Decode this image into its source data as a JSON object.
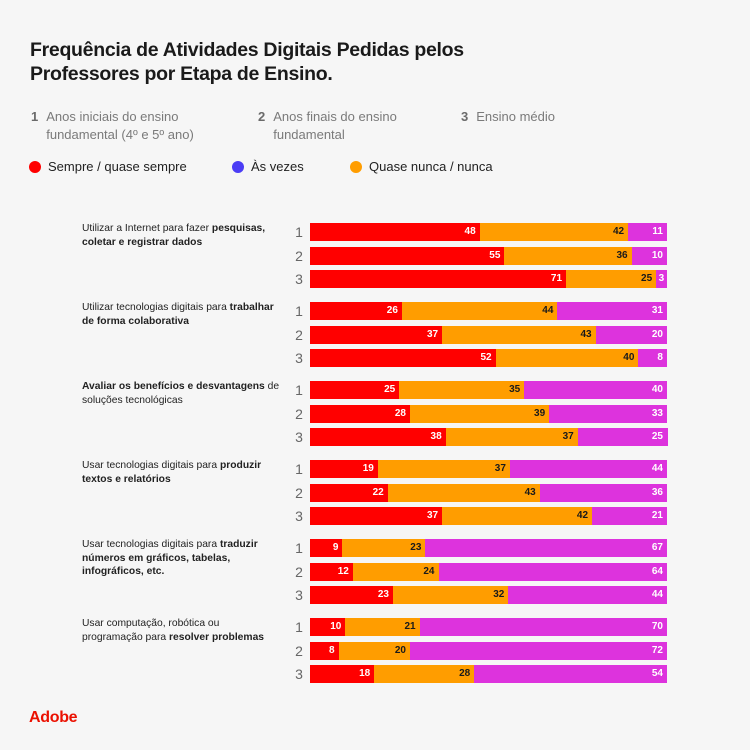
{
  "chart_data": {
    "type": "bar",
    "orientation": "horizontal",
    "stacked": true,
    "title": "Frequência de Atividades Digitais Pedidas pelos Professores por Etapa de Ensino.",
    "stages": [
      {
        "num": "1",
        "label": "Anos iniciais do ensino fundamental (4º e 5º ano)"
      },
      {
        "num": "2",
        "label": "Anos finais do ensino fundamental"
      },
      {
        "num": "3",
        "label": "Ensino médio"
      }
    ],
    "legend": [
      {
        "name": "Sempre / quase sempre",
        "color": "#ff0000"
      },
      {
        "name": "Às vezes",
        "color": "#4b3df5"
      },
      {
        "name": "Quase nunca / nunca",
        "color": "#ff9d00"
      }
    ],
    "segment_colors": [
      "#ff0000",
      "#ff9d00",
      "#dd33dd"
    ],
    "categories": [
      {
        "pre": "Utilizar a Internet para fazer ",
        "bold": "pesquisas, coletar e registrar dados",
        "post": "",
        "rows": [
          {
            "stage": "1",
            "values": [
              48,
              42,
              11
            ]
          },
          {
            "stage": "2",
            "values": [
              55,
              36,
              10
            ]
          },
          {
            "stage": "3",
            "values": [
              71,
              25,
              3
            ]
          }
        ]
      },
      {
        "pre": "Utilizar tecnologias digitais para ",
        "bold": "trabalhar de forma colaborativa",
        "post": "",
        "rows": [
          {
            "stage": "1",
            "values": [
              26,
              44,
              31
            ]
          },
          {
            "stage": "2",
            "values": [
              37,
              43,
              20
            ]
          },
          {
            "stage": "3",
            "values": [
              52,
              40,
              8
            ]
          }
        ]
      },
      {
        "pre": "",
        "bold": "Avaliar os benefícios e desvantagens",
        "post": " de soluções tecnológicas",
        "rows": [
          {
            "stage": "1",
            "values": [
              25,
              35,
              40
            ]
          },
          {
            "stage": "2",
            "values": [
              28,
              39,
              33
            ]
          },
          {
            "stage": "3",
            "values": [
              38,
              37,
              25
            ]
          }
        ]
      },
      {
        "pre": "Usar tecnologias digitais para ",
        "bold": "produzir textos e relatórios",
        "post": "",
        "rows": [
          {
            "stage": "1",
            "values": [
              19,
              37,
              44
            ]
          },
          {
            "stage": "2",
            "values": [
              22,
              43,
              36
            ]
          },
          {
            "stage": "3",
            "values": [
              37,
              42,
              21
            ]
          }
        ]
      },
      {
        "pre": "Usar tecnologias digitais para ",
        "bold": "traduzir números em gráficos, tabelas, infográficos, etc.",
        "post": "",
        "rows": [
          {
            "stage": "1",
            "values": [
              9,
              23,
              67
            ]
          },
          {
            "stage": "2",
            "values": [
              12,
              24,
              64
            ]
          },
          {
            "stage": "3",
            "values": [
              23,
              32,
              44
            ]
          }
        ]
      },
      {
        "pre": "Usar computação, robótica ou programação para ",
        "bold": "resolver problemas",
        "post": "",
        "rows": [
          {
            "stage": "1",
            "values": [
              10,
              21,
              70
            ]
          },
          {
            "stage": "2",
            "values": [
              8,
              20,
              72
            ]
          },
          {
            "stage": "3",
            "values": [
              18,
              28,
              54
            ]
          }
        ]
      }
    ],
    "value_label_colors": [
      "#ffffff",
      "#1a1a1a",
      "#ffffff"
    ]
  },
  "brand": {
    "logo_text": "Adobe",
    "color": "#eb1000"
  }
}
